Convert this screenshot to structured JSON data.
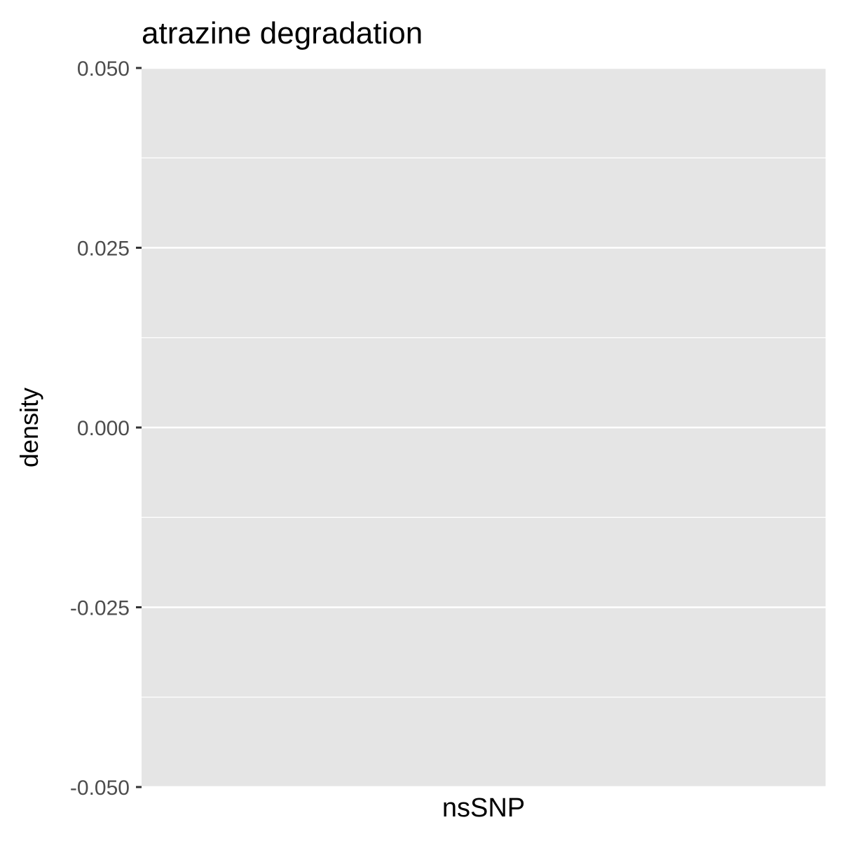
{
  "chart_data": {
    "type": "violin",
    "title": "atrazine degradation",
    "xlabel": "",
    "ylabel": "density",
    "categories": [
      "nsSNP"
    ],
    "series": [],
    "ylim": [
      -0.05,
      0.05
    ],
    "yticks": [
      0.05,
      0.025,
      0.0,
      -0.025,
      -0.05
    ],
    "ytick_labels": [
      "0.050",
      "0.025",
      "0.000",
      "-0.025",
      "-0.050"
    ],
    "grid": true,
    "panel_color": "#e5e5e5",
    "grid_color": "#ffffff"
  }
}
